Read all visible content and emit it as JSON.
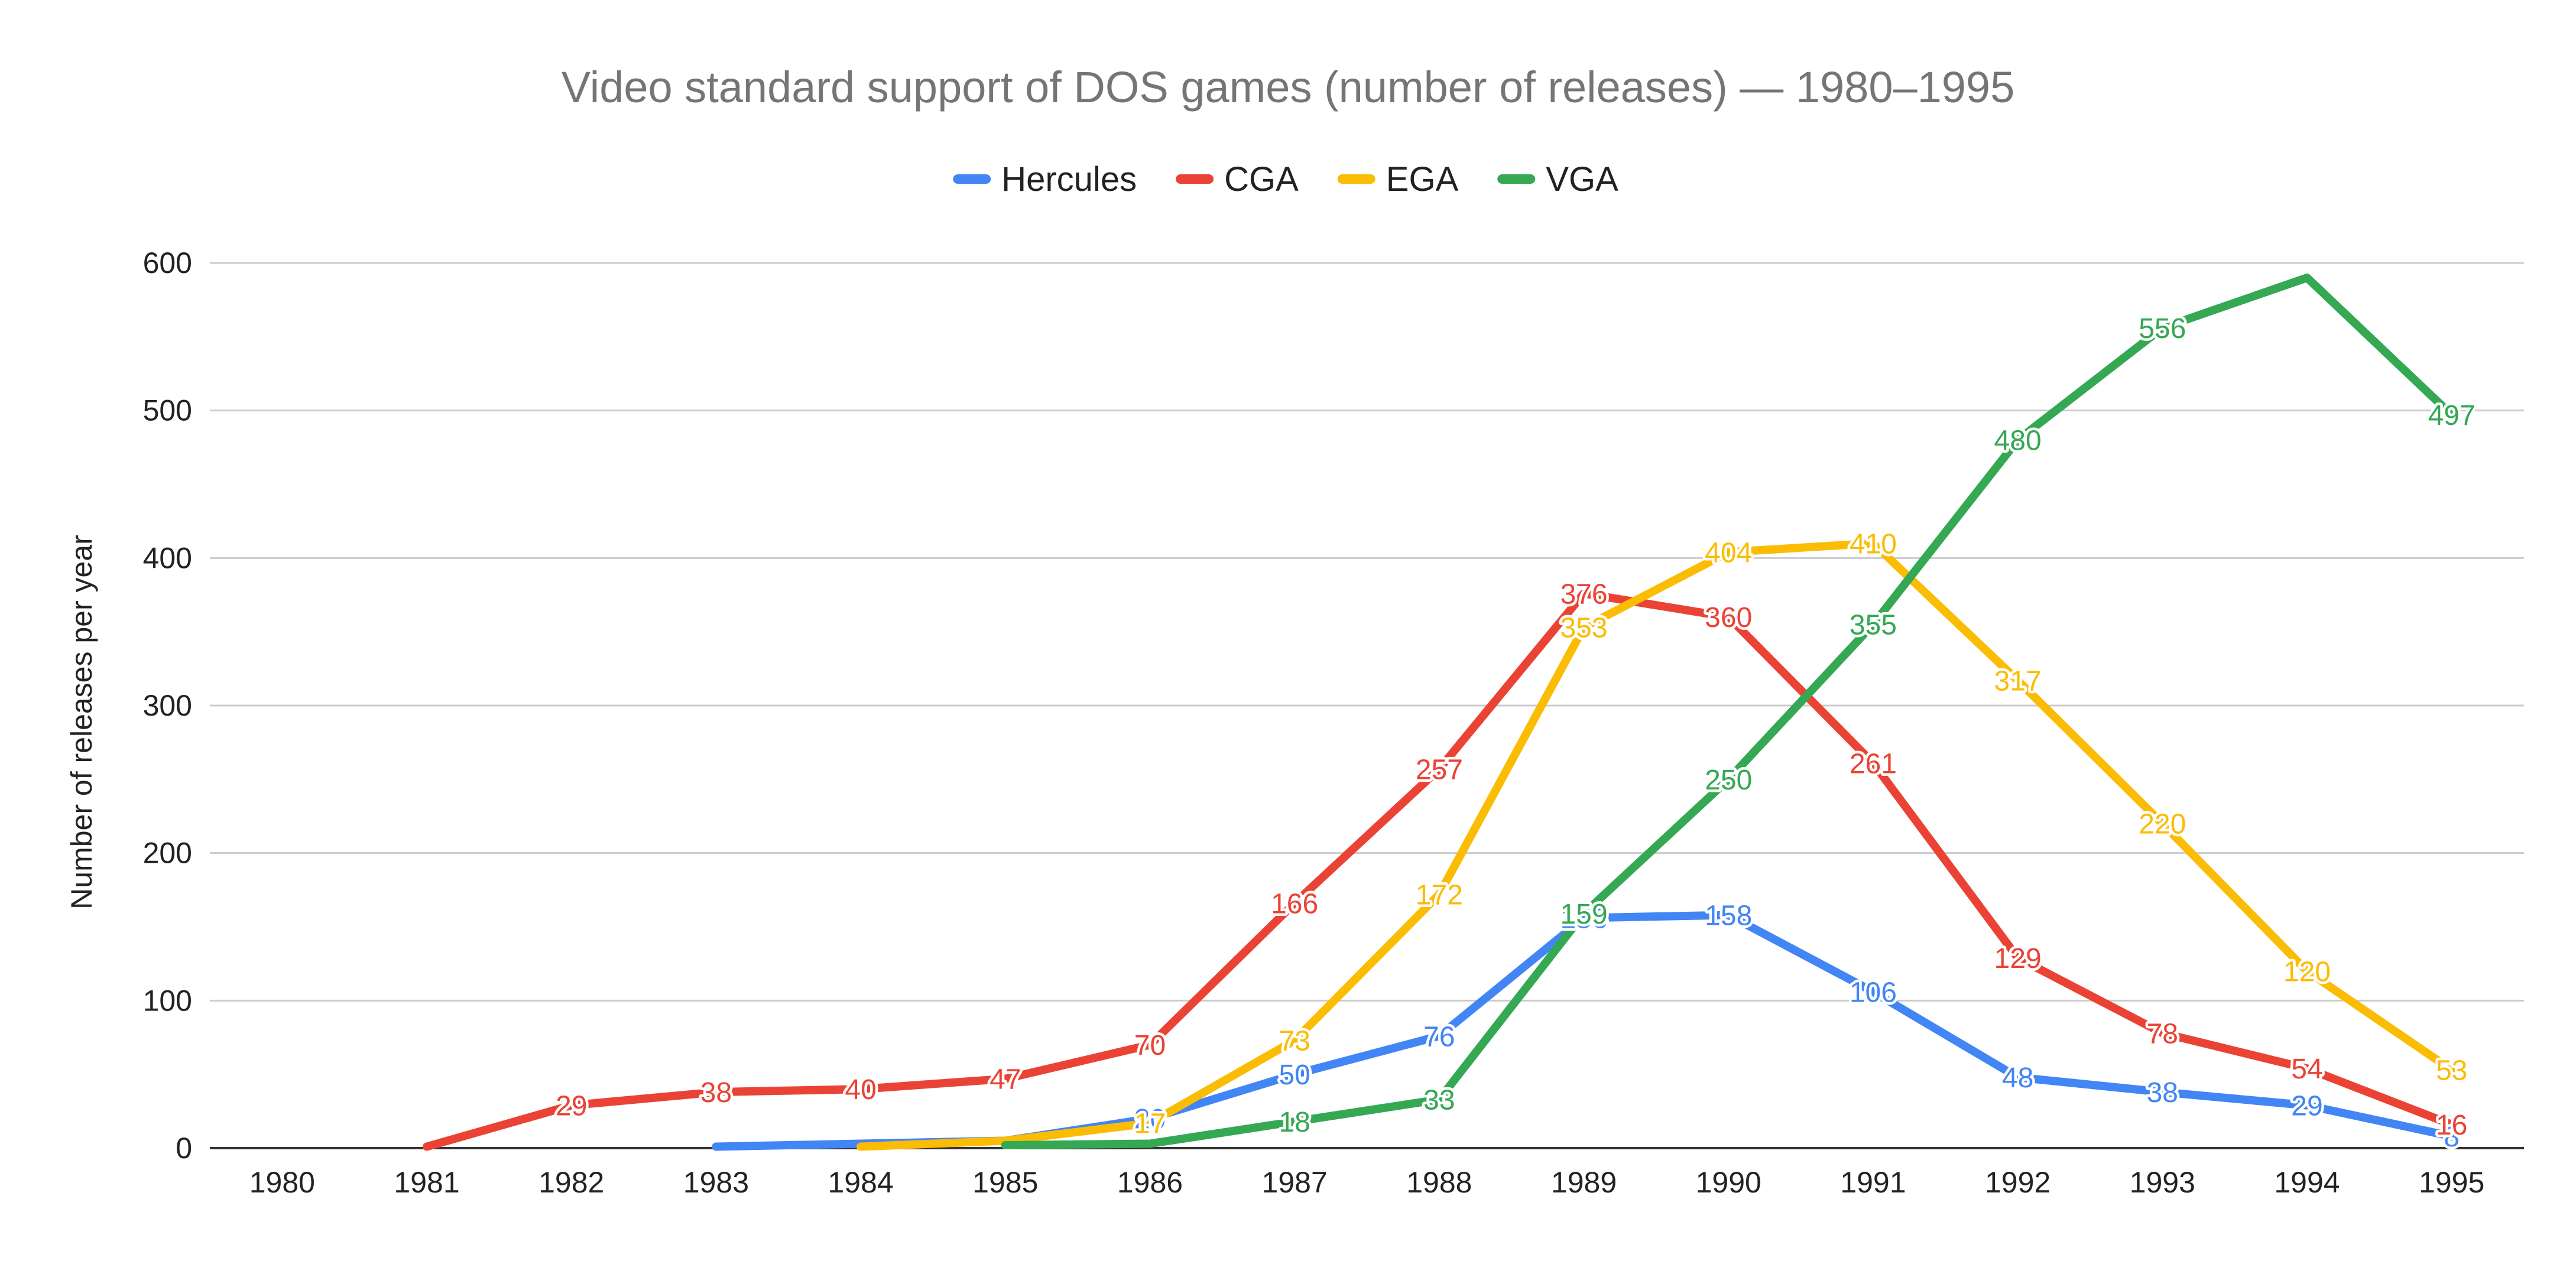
{
  "chart_data": {
    "type": "line",
    "title": "Video standard support of DOS games (number of releases) — 1980–1995",
    "xlabel": "",
    "ylabel": "Number of releases per year",
    "x": [
      "1980",
      "1981",
      "1982",
      "1983",
      "1984",
      "1985",
      "1986",
      "1987",
      "1988",
      "1989",
      "1990",
      "1991",
      "1992",
      "1993",
      "1994",
      "1995"
    ],
    "ylim": [
      0,
      600
    ],
    "yticks": [
      0,
      100,
      200,
      300,
      400,
      500,
      600
    ],
    "grid": true,
    "legend_position": "top",
    "series": [
      {
        "name": "Hercules",
        "color": "#4285f4",
        "values": [
          null,
          null,
          null,
          1,
          3,
          5,
          20,
          50,
          76,
          156,
          158,
          106,
          48,
          38,
          29,
          8
        ],
        "labels": [
          null,
          null,
          null,
          null,
          null,
          null,
          "20",
          "50",
          "76",
          "156",
          "158",
          "106",
          "48",
          "38",
          "29",
          "8"
        ]
      },
      {
        "name": "CGA",
        "color": "#ea4335",
        "values": [
          null,
          1,
          29,
          38,
          40,
          47,
          70,
          166,
          257,
          376,
          360,
          261,
          129,
          78,
          54,
          16
        ],
        "labels": [
          null,
          null,
          "29",
          "38",
          "40",
          "47",
          "70",
          "166",
          "257",
          "376",
          "360",
          "261",
          "129",
          "78",
          "54",
          "16"
        ]
      },
      {
        "name": "EGA",
        "color": "#fbbc04",
        "values": [
          null,
          null,
          null,
          null,
          1,
          5,
          17,
          73,
          172,
          353,
          404,
          410,
          317,
          220,
          120,
          53
        ],
        "labels": [
          null,
          null,
          null,
          null,
          null,
          null,
          "17",
          "73",
          "172",
          "353",
          "404",
          "410",
          "317",
          "220",
          "120",
          "53"
        ]
      },
      {
        "name": "VGA",
        "color": "#34a853",
        "values": [
          null,
          null,
          null,
          null,
          null,
          2,
          3,
          18,
          33,
          159,
          250,
          355,
          480,
          556,
          590,
          497
        ],
        "labels": [
          null,
          null,
          null,
          null,
          null,
          null,
          null,
          "18",
          "33",
          "159",
          "250",
          "355",
          "480",
          "556",
          null,
          "497"
        ]
      }
    ]
  }
}
